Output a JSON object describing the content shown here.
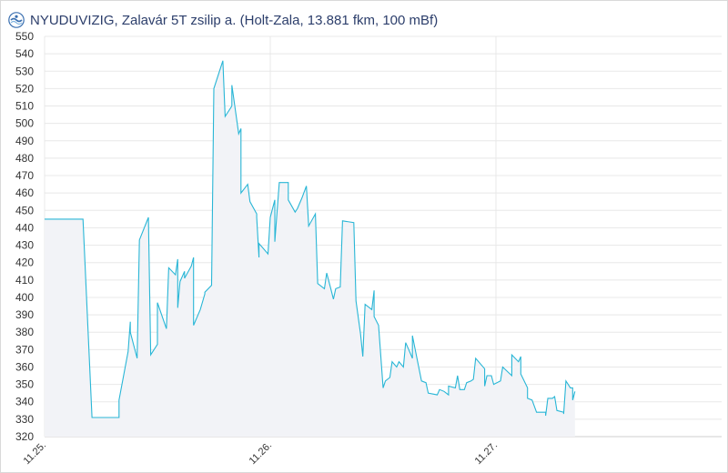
{
  "header": {
    "logo_icon": "nyuduvizig-logo-icon",
    "title": "NYUDUVIZIG, Zalavár 5T zsilip a. (Holt-Zala, 13.881 fkm, 100 mBf)"
  },
  "colors": {
    "line": "#29b6d6",
    "area": "#f2f3f7",
    "grid": "#e8e8e8",
    "axis_text": "#333333",
    "title": "#2c3e6b"
  },
  "chart_data": {
    "type": "area",
    "title": "NYUDUVIZIG, Zalavár 5T zsilip a. (Holt-Zala, 13.881 fkm, 100 mBf)",
    "xlabel": "",
    "ylabel": "",
    "ylim": [
      320,
      550
    ],
    "ytick_step": 10,
    "xlim_days": [
      0,
      3
    ],
    "xticks": [
      {
        "day": 0,
        "label": "11.25."
      },
      {
        "day": 1,
        "label": "11.26."
      },
      {
        "day": 2,
        "label": "11.27."
      }
    ],
    "grid": true,
    "series": [
      {
        "points": [
          [
            0.0,
            445
          ],
          [
            0.17,
            445
          ],
          [
            0.21,
            331
          ],
          [
            0.28,
            331
          ],
          [
            0.33,
            331
          ],
          [
            0.33,
            341
          ],
          [
            0.37,
            369
          ],
          [
            0.38,
            386
          ],
          [
            0.38,
            380
          ],
          [
            0.41,
            365
          ],
          [
            0.42,
            433
          ],
          [
            0.46,
            446
          ],
          [
            0.47,
            367
          ],
          [
            0.5,
            373
          ],
          [
            0.5,
            397
          ],
          [
            0.54,
            382
          ],
          [
            0.55,
            417
          ],
          [
            0.58,
            413
          ],
          [
            0.59,
            422
          ],
          [
            0.59,
            394
          ],
          [
            0.6,
            409
          ],
          [
            0.62,
            415
          ],
          [
            0.62,
            411
          ],
          [
            0.65,
            418
          ],
          [
            0.66,
            423
          ],
          [
            0.66,
            384
          ],
          [
            0.69,
            393
          ],
          [
            0.71,
            402
          ],
          [
            0.71,
            403
          ],
          [
            0.74,
            407
          ],
          [
            0.75,
            520
          ],
          [
            0.79,
            536
          ],
          [
            0.8,
            504
          ],
          [
            0.83,
            510
          ],
          [
            0.83,
            522
          ],
          [
            0.86,
            494
          ],
          [
            0.87,
            497
          ],
          [
            0.87,
            460
          ],
          [
            0.9,
            465
          ],
          [
            0.91,
            455
          ],
          [
            0.94,
            448
          ],
          [
            0.94,
            446
          ],
          [
            0.95,
            423
          ],
          [
            0.95,
            431
          ],
          [
            0.99,
            425
          ],
          [
            1.0,
            446
          ],
          [
            1.02,
            456
          ],
          [
            1.02,
            432
          ],
          [
            1.04,
            466
          ],
          [
            1.08,
            466
          ],
          [
            1.08,
            456
          ],
          [
            1.11,
            449
          ],
          [
            1.12,
            451
          ],
          [
            1.14,
            457
          ],
          [
            1.16,
            464
          ],
          [
            1.17,
            441
          ],
          [
            1.2,
            448
          ],
          [
            1.21,
            408
          ],
          [
            1.24,
            405
          ],
          [
            1.25,
            414
          ],
          [
            1.27,
            404
          ],
          [
            1.28,
            399
          ],
          [
            1.29,
            405
          ],
          [
            1.31,
            406
          ],
          [
            1.32,
            444
          ],
          [
            1.37,
            443
          ],
          [
            1.38,
            398
          ],
          [
            1.4,
            379
          ],
          [
            1.41,
            366
          ],
          [
            1.42,
            396
          ],
          [
            1.45,
            393
          ],
          [
            1.46,
            404
          ],
          [
            1.46,
            389
          ],
          [
            1.48,
            384
          ],
          [
            1.5,
            348
          ],
          [
            1.51,
            352
          ],
          [
            1.53,
            354
          ],
          [
            1.54,
            363
          ],
          [
            1.56,
            360
          ],
          [
            1.57,
            363
          ],
          [
            1.59,
            360
          ],
          [
            1.6,
            374
          ],
          [
            1.62,
            368
          ],
          [
            1.63,
            365
          ],
          [
            1.63,
            378
          ],
          [
            1.67,
            352
          ],
          [
            1.69,
            351
          ],
          [
            1.7,
            345
          ],
          [
            1.74,
            344
          ],
          [
            1.75,
            347
          ],
          [
            1.77,
            346
          ],
          [
            1.79,
            344
          ],
          [
            1.79,
            349
          ],
          [
            1.82,
            348
          ],
          [
            1.83,
            355
          ],
          [
            1.84,
            347
          ],
          [
            1.86,
            347
          ],
          [
            1.87,
            351
          ],
          [
            1.89,
            352
          ],
          [
            1.9,
            353
          ],
          [
            1.91,
            365
          ],
          [
            1.95,
            359
          ],
          [
            1.95,
            349
          ],
          [
            1.96,
            355
          ],
          [
            1.98,
            355
          ],
          [
            1.99,
            350
          ],
          [
            2.02,
            352
          ],
          [
            2.03,
            360
          ],
          [
            2.07,
            355
          ],
          [
            2.07,
            367
          ],
          [
            2.1,
            363
          ],
          [
            2.11,
            366
          ],
          [
            2.11,
            356
          ],
          [
            2.14,
            348
          ],
          [
            2.14,
            342
          ],
          [
            2.16,
            341
          ],
          [
            2.18,
            334
          ],
          [
            2.19,
            334
          ],
          [
            2.22,
            334
          ],
          [
            2.22,
            332
          ],
          [
            2.23,
            342
          ],
          [
            2.25,
            342
          ],
          [
            2.26,
            343
          ],
          [
            2.27,
            335
          ],
          [
            2.3,
            334
          ],
          [
            2.3,
            333
          ],
          [
            2.31,
            352
          ],
          [
            2.33,
            348
          ],
          [
            2.34,
            348
          ],
          [
            2.34,
            341
          ],
          [
            2.35,
            346
          ]
        ]
      }
    ]
  }
}
